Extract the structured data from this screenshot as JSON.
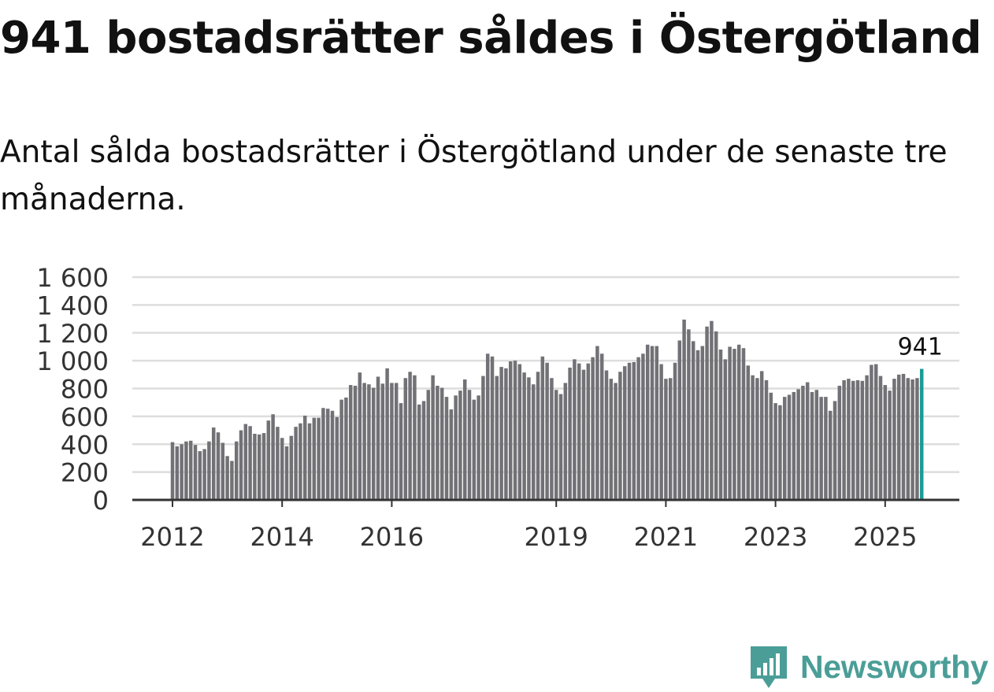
{
  "title": "941 bostadsrätter såldes i Östergötland",
  "subtitle": "Antal sålda bostadsrätter i Östergötland under de senaste tre månaderna.",
  "brand": {
    "name": "Newsworthy",
    "icon": "newsworthy-chart-bubble-icon"
  },
  "colors": {
    "bar": "#727176",
    "highlight": "#1a9b93",
    "grid": "#dddddd",
    "axis": "#333333",
    "brand": "#4b9e97"
  },
  "chart_data": {
    "type": "bar",
    "title": "",
    "xlabel": "",
    "ylabel": "",
    "ylim": [
      0,
      1600
    ],
    "yticks": [
      0,
      200,
      400,
      600,
      800,
      1000,
      1200,
      1400,
      1600
    ],
    "ytick_labels": [
      "0",
      "200",
      "400",
      "600",
      "800",
      "1 000",
      "1 200",
      "1 400",
      "1 600"
    ],
    "xtick_labels": [
      {
        "label": "2012",
        "index": 0
      },
      {
        "label": "2014",
        "index": 24
      },
      {
        "label": "2016",
        "index": 48
      },
      {
        "label": "2019",
        "index": 84
      },
      {
        "label": "2021",
        "index": 108
      },
      {
        "label": "2023",
        "index": 132
      },
      {
        "label": "2025",
        "index": 156
      }
    ],
    "highlight_label": "941",
    "series": [
      {
        "name": "Antal sålda bostadsrätter",
        "values": [
          415,
          385,
          400,
          420,
          425,
          395,
          350,
          365,
          420,
          520,
          485,
          410,
          315,
          280,
          420,
          500,
          545,
          530,
          475,
          470,
          480,
          570,
          615,
          525,
          445,
          385,
          460,
          525,
          550,
          605,
          550,
          590,
          590,
          660,
          655,
          640,
          595,
          720,
          735,
          825,
          820,
          915,
          840,
          830,
          805,
          885,
          835,
          945,
          840,
          840,
          695,
          875,
          920,
          895,
          685,
          710,
          790,
          895,
          820,
          805,
          740,
          650,
          750,
          785,
          865,
          790,
          720,
          750,
          890,
          1050,
          1030,
          890,
          955,
          945,
          995,
          1000,
          975,
          915,
          880,
          830,
          920,
          1030,
          985,
          875,
          790,
          760,
          840,
          950,
          1010,
          980,
          935,
          980,
          1025,
          1105,
          1050,
          930,
          870,
          840,
          920,
          960,
          985,
          990,
          1025,
          1050,
          1115,
          1105,
          1105,
          975,
          870,
          875,
          985,
          1145,
          1295,
          1225,
          1140,
          1075,
          1105,
          1245,
          1285,
          1210,
          1080,
          1010,
          1100,
          1085,
          1115,
          1090,
          965,
          895,
          875,
          925,
          860,
          770,
          695,
          680,
          740,
          755,
          775,
          795,
          820,
          845,
          775,
          790,
          740,
          740,
          640,
          710,
          820,
          860,
          870,
          855,
          860,
          855,
          895,
          970,
          975,
          890,
          825,
          785,
          870,
          900,
          905,
          875,
          865,
          875,
          941
        ]
      }
    ]
  }
}
